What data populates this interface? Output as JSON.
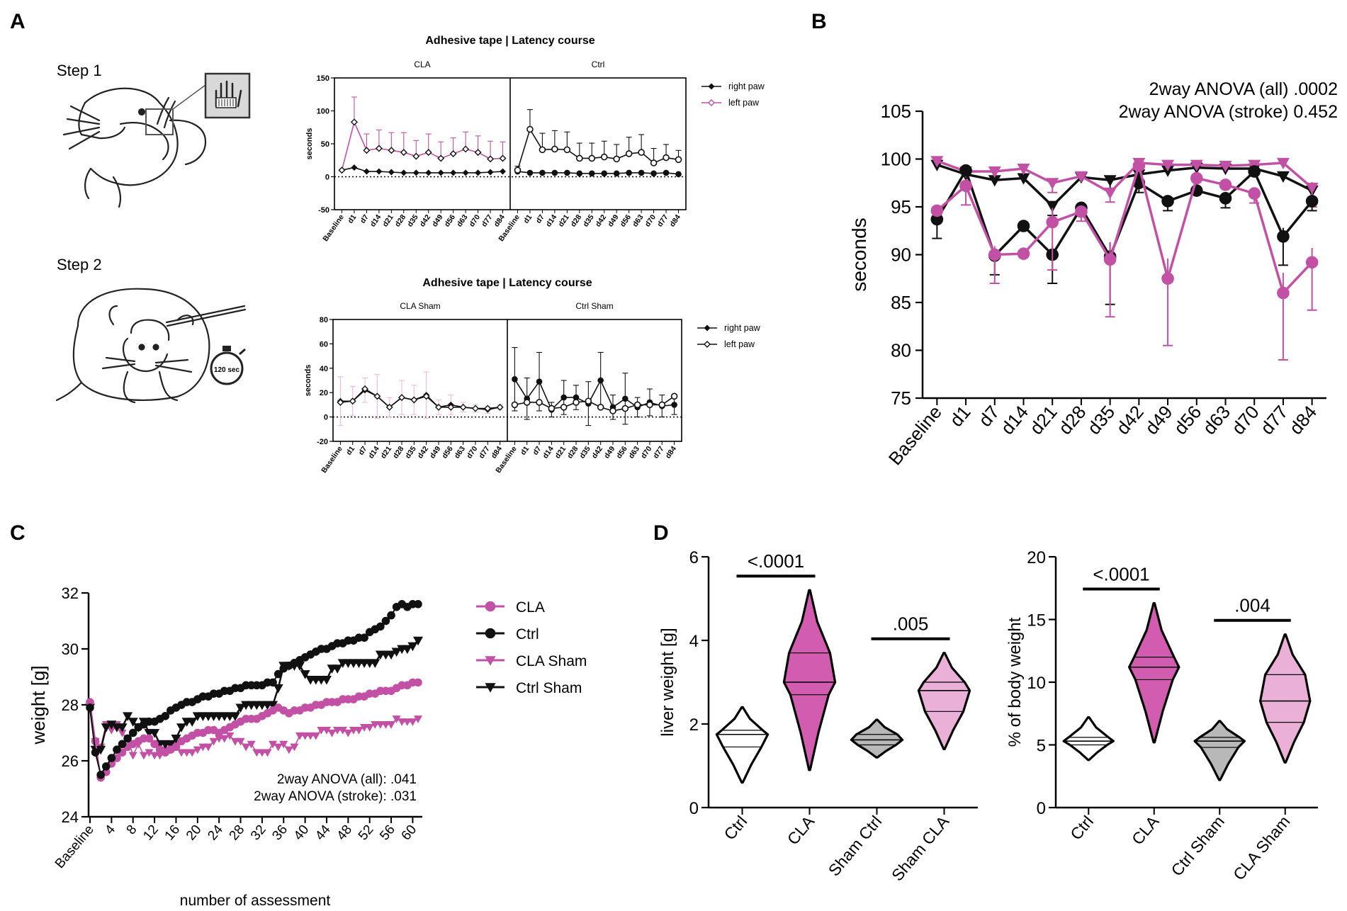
{
  "panel_labels": {
    "a": "A",
    "b": "B",
    "c": "C",
    "d": "D"
  },
  "steps": {
    "step1": "Step 1",
    "step2": "Step 2",
    "timer": "120 sec"
  },
  "colors": {
    "cla": "#c251a5",
    "black": "#111111",
    "gray": "#b8b8b8",
    "light_pink": "#f0b8dc",
    "pink_fill": "#d25cb0",
    "light_pink_fill": "#eab0d8"
  },
  "chart_data": [
    {
      "id": "tape_stroke",
      "type": "line",
      "title": "Adhesive tape |  Latency course",
      "ylabel": "seconds",
      "ylim": [
        -50,
        150
      ],
      "yticks": [
        150,
        100,
        50,
        0,
        -50
      ],
      "categories": [
        "Baseline",
        "d1",
        "d7",
        "d14",
        "d21",
        "d28",
        "d35",
        "d42",
        "d49",
        "d56",
        "d63",
        "d70",
        "d77",
        "d84"
      ],
      "legend": [
        "right paw",
        "left paw"
      ],
      "groups": [
        {
          "name": "CLA",
          "series": [
            {
              "name": "right paw",
              "values": [
                10,
                14,
                8,
                8,
                7,
                6,
                6,
                6,
                6,
                6,
                6,
                6,
                7,
                8
              ],
              "errors": [
                0,
                0,
                0,
                0,
                0,
                0,
                0,
                0,
                0,
                0,
                0,
                0,
                0,
                0
              ]
            },
            {
              "name": "left paw",
              "values": [
                10,
                83,
                40,
                43,
                40,
                37,
                31,
                37,
                28,
                35,
                42,
                37,
                27,
                28
              ],
              "errors": [
                0,
                38,
                25,
                28,
                27,
                30,
                24,
                28,
                25,
                24,
                26,
                25,
                27,
                25
              ]
            }
          ]
        },
        {
          "name": "Ctrl",
          "series": [
            {
              "name": "right paw",
              "values": [
                8,
                6,
                6,
                6,
                6,
                5,
                5,
                5,
                5,
                6,
                6,
                5,
                6,
                4
              ],
              "errors": [
                0,
                0,
                0,
                0,
                0,
                0,
                0,
                0,
                0,
                0,
                0,
                0,
                0,
                0
              ]
            },
            {
              "name": "left paw",
              "values": [
                10,
                72,
                41,
                42,
                41,
                28,
                28,
                30,
                27,
                35,
                37,
                21,
                29,
                26
              ],
              "errors": [
                6,
                30,
                25,
                28,
                27,
                23,
                23,
                24,
                22,
                25,
                27,
                22,
                20,
                14
              ]
            }
          ]
        }
      ]
    },
    {
      "id": "tape_sham",
      "type": "line",
      "title": "Adhesive tape |  Latency course",
      "ylabel": "seconds",
      "ylim": [
        -20,
        80
      ],
      "yticks": [
        80,
        60,
        40,
        20,
        0,
        -20
      ],
      "categories": [
        "Baseline",
        "d1",
        "d7",
        "d14",
        "d21",
        "d28",
        "d35",
        "d42",
        "d49",
        "d56",
        "d63",
        "d70",
        "d77",
        "d84"
      ],
      "legend": [
        "right paw",
        "left paw"
      ],
      "groups": [
        {
          "name": "CLA Sham",
          "series": [
            {
              "name": "right paw",
              "values": [
                13,
                13,
                22,
                17,
                8,
                16,
                14,
                18,
                8,
                10,
                8,
                7,
                6,
                8
              ],
              "errors": [
                20,
                12,
                10,
                18,
                8,
                14,
                12,
                19,
                6,
                8,
                4,
                3,
                3,
                2
              ]
            },
            {
              "name": "left paw",
              "values": [
                12,
                13,
                23,
                17,
                8,
                16,
                14,
                17,
                8,
                8,
                8,
                7,
                7,
                8
              ],
              "errors": [
                0,
                0,
                0,
                0,
                0,
                0,
                0,
                0,
                0,
                0,
                0,
                0,
                0,
                0
              ]
            }
          ]
        },
        {
          "name": "Ctrl  Sham",
          "series": [
            {
              "name": "right paw",
              "values": [
                31,
                15,
                29,
                6,
                16,
                16,
                11,
                30,
                8,
                15,
                8,
                12,
                9,
                10
              ],
              "errors": [
                26,
                17,
                24,
                6,
                14,
                10,
                18,
                23,
                10,
                21,
                8,
                11,
                9,
                8
              ]
            },
            {
              "name": "left paw",
              "values": [
                10,
                12,
                12,
                7,
                8,
                12,
                13,
                8,
                5,
                7,
                10,
                10,
                10,
                17
              ],
              "errors": [
                0,
                0,
                0,
                0,
                0,
                0,
                0,
                0,
                0,
                0,
                0,
                0,
                0,
                0
              ]
            }
          ]
        }
      ]
    },
    {
      "id": "panel_b",
      "type": "line",
      "ylabel": "seconds",
      "ylim": [
        75,
        105
      ],
      "yticks": [
        75,
        80,
        85,
        90,
        95,
        100,
        105
      ],
      "categories": [
        "Baseline",
        "d1",
        "d7",
        "d14",
        "d21",
        "d28",
        "d35",
        "d42",
        "d49",
        "d56",
        "d63",
        "d70",
        "d77",
        "d84"
      ],
      "annotations": [
        "2way ANOVA (all) .0002",
        "2way  ANOVA (stroke) 0.452"
      ],
      "series": [
        {
          "name": "CLA (circle, pink)",
          "values": [
            94.6,
            97.2,
            90.0,
            90.1,
            93.4,
            94.5,
            89.5,
            99.3,
            87.5,
            98.0,
            97.3,
            96.4,
            86.0,
            89.2
          ],
          "errors": [
            0,
            2,
            3,
            0,
            5,
            1,
            6,
            0,
            7,
            0,
            0,
            1,
            7,
            5
          ]
        },
        {
          "name": "Ctrl (circle, black)",
          "values": [
            93.7,
            98.8,
            89.9,
            93.0,
            90.0,
            94.9,
            89.8,
            97.5,
            95.6,
            96.7,
            95.9,
            98.7,
            91.9,
            95.6
          ],
          "errors": [
            2,
            0,
            2,
            0,
            3,
            0,
            5,
            1,
            1,
            0,
            1,
            0,
            3,
            1
          ]
        },
        {
          "name": "CLA Sham (triangle, pink)",
          "values": [
            99.8,
            98.7,
            98.7,
            99.0,
            97.5,
            98.2,
            96.5,
            99.6,
            99.4,
            99.4,
            99.3,
            99.4,
            99.6,
            97.0
          ],
          "errors": [
            0,
            0,
            0,
            0,
            1,
            0,
            1,
            0,
            0,
            0,
            0,
            0,
            0,
            2
          ]
        },
        {
          "name": "Ctrl Sham (triangle, black)",
          "values": [
            99.4,
            98.4,
            97.8,
            98.0,
            95.1,
            98.1,
            97.8,
            98.4,
            98.8,
            99.1,
            99.0,
            99.0,
            98.2,
            96.7
          ],
          "errors": [
            0,
            0,
            0,
            0,
            1,
            0,
            1,
            0,
            0,
            0,
            0,
            0,
            0,
            1
          ]
        }
      ]
    },
    {
      "id": "panel_c",
      "type": "line",
      "xlabel": "number of assessment",
      "ylabel": "weight [g]",
      "ylim": [
        24,
        32
      ],
      "yticks": [
        24,
        26,
        28,
        30,
        32
      ],
      "xticks": [
        "Baseline",
        "4",
        "8",
        "12",
        "16",
        "20",
        "24",
        "28",
        "32",
        "36",
        "40",
        "44",
        "48",
        "52",
        "56",
        "60"
      ],
      "legend": [
        "CLA",
        "Ctrl",
        "CLA Sham",
        "Ctrl Sham"
      ],
      "annotations": [
        "2way ANOVA (all): .041",
        "2way ANOVA (stroke): .031"
      ],
      "x": [
        0,
        1,
        2,
        3,
        4,
        5,
        6,
        7,
        8,
        9,
        10,
        11,
        12,
        13,
        14,
        15,
        16,
        17,
        18,
        19,
        20,
        21,
        22,
        23,
        24,
        25,
        26,
        27,
        28,
        29,
        30,
        31,
        32,
        33,
        34,
        35,
        36,
        37,
        38,
        39,
        40,
        41,
        42,
        43,
        44,
        45,
        46,
        47,
        48,
        49,
        50,
        51,
        52,
        53,
        54,
        55,
        56,
        57,
        58,
        59,
        60,
        61
      ],
      "series": [
        {
          "name": "CLA",
          "values": [
            28.1,
            26.7,
            25.4,
            25.6,
            25.9,
            26.1,
            26.3,
            26.5,
            26.6,
            26.7,
            26.8,
            26.8,
            26.6,
            26.4,
            26.3,
            26.4,
            26.5,
            26.7,
            26.8,
            26.9,
            27.0,
            27.0,
            27.1,
            27.1,
            27.0,
            27.1,
            27.2,
            27.3,
            27.4,
            27.5,
            27.5,
            27.5,
            27.6,
            27.7,
            27.8,
            27.9,
            27.8,
            27.7,
            27.8,
            27.8,
            27.9,
            27.9,
            28.0,
            28.0,
            28.1,
            28.1,
            28.1,
            28.2,
            28.2,
            28.2,
            28.3,
            28.3,
            28.4,
            28.4,
            28.5,
            28.5,
            28.5,
            28.6,
            28.7,
            28.7,
            28.8,
            28.8
          ]
        },
        {
          "name": "Ctrl",
          "values": [
            27.9,
            26.3,
            25.5,
            25.8,
            26.1,
            26.4,
            26.6,
            26.8,
            27.0,
            27.2,
            27.3,
            27.4,
            27.4,
            27.5,
            27.6,
            27.8,
            27.9,
            28.0,
            28.1,
            28.1,
            28.2,
            28.3,
            28.3,
            28.4,
            28.4,
            28.5,
            28.5,
            28.6,
            28.6,
            28.7,
            28.7,
            28.7,
            28.7,
            28.8,
            28.8,
            29.1,
            29.3,
            29.4,
            29.5,
            29.6,
            29.7,
            29.8,
            29.9,
            30.0,
            30.0,
            30.1,
            30.2,
            30.2,
            30.3,
            30.3,
            30.4,
            30.4,
            30.6,
            30.7,
            30.8,
            31.0,
            31.2,
            31.5,
            31.6,
            31.5,
            31.6,
            31.6
          ]
        },
        {
          "name": "CLA Sham",
          "values": [
            28.0,
            26.7,
            26.5,
            27.3,
            27.1,
            27.3,
            27.0,
            26.8,
            26.2,
            26.6,
            26.2,
            26.3,
            26.2,
            26.2,
            26.4,
            26.5,
            26.6,
            26.3,
            26.3,
            26.3,
            26.4,
            26.5,
            26.5,
            26.7,
            26.8,
            26.8,
            26.9,
            26.7,
            26.7,
            26.5,
            26.6,
            26.3,
            26.3,
            26.3,
            26.6,
            26.5,
            26.6,
            26.4,
            26.5,
            26.9,
            26.9,
            26.9,
            26.9,
            27.1,
            27.1,
            27.0,
            27.1,
            27.1,
            27.0,
            27.1,
            27.1,
            27.2,
            27.2,
            27.3,
            27.3,
            27.3,
            27.3,
            27.5,
            27.4,
            27.4,
            27.4,
            27.5
          ]
        },
        {
          "name": "Ctrl Sham",
          "values": [
            27.9,
            26.4,
            26.4,
            27.2,
            27.3,
            27.2,
            27.2,
            27.6,
            27.4,
            27.2,
            27.4,
            27.0,
            27.0,
            26.6,
            26.6,
            26.6,
            26.8,
            27.2,
            27.4,
            27.4,
            27.6,
            27.6,
            27.6,
            27.6,
            27.6,
            27.6,
            27.6,
            27.6,
            27.9,
            28.0,
            28.0,
            28.0,
            28.0,
            28.0,
            28.0,
            28.6,
            29.4,
            29.4,
            29.4,
            29.4,
            29.1,
            28.9,
            28.9,
            28.9,
            28.9,
            29.3,
            29.3,
            29.5,
            29.5,
            29.5,
            29.5,
            29.5,
            29.5,
            29.5,
            29.8,
            29.8,
            29.8,
            29.9,
            30.0,
            30.0,
            30.1,
            30.3
          ]
        }
      ]
    },
    {
      "id": "panel_d_liver",
      "type": "violin",
      "ylabel": "liver weight [g]",
      "ylim": [
        0,
        6
      ],
      "yticks": [
        0,
        2,
        4,
        6
      ],
      "categories": [
        "Ctrl",
        "CLA",
        "Sham Ctrl",
        "Sham CLA"
      ],
      "medians": [
        1.75,
        3.0,
        1.62,
        2.8
      ],
      "quartiles": [
        [
          1.45,
          1.85
        ],
        [
          2.7,
          3.7
        ],
        [
          1.5,
          1.75
        ],
        [
          2.3,
          3.0
        ]
      ],
      "ranges": [
        [
          0.6,
          2.4
        ],
        [
          0.9,
          5.2
        ],
        [
          1.2,
          2.1
        ],
        [
          1.4,
          3.7
        ]
      ],
      "significance": [
        {
          "pair": [
            "Ctrl",
            "CLA"
          ],
          "label": "<.0001"
        },
        {
          "pair": [
            "Sham Ctrl",
            "Sham CLA"
          ],
          "label": ".005"
        }
      ]
    },
    {
      "id": "panel_d_body",
      "type": "violin",
      "ylabel": "% of body weight",
      "ylim": [
        0,
        20
      ],
      "yticks": [
        0,
        5,
        10,
        15,
        20
      ],
      "categories": [
        "Ctrl",
        "CLA",
        "Ctrl Sham",
        "CLA Sham"
      ],
      "medians": [
        5.3,
        11.2,
        5.3,
        8.5
      ],
      "quartiles": [
        [
          5.0,
          5.6
        ],
        [
          10.2,
          12.0
        ],
        [
          4.8,
          5.6
        ],
        [
          6.8,
          10.6
        ]
      ],
      "ranges": [
        [
          3.8,
          7.2
        ],
        [
          5.2,
          16.3
        ],
        [
          2.2,
          6.9
        ],
        [
          3.6,
          13.8
        ]
      ],
      "significance": [
        {
          "pair": [
            "Ctrl",
            "CLA"
          ],
          "label": "<.0001"
        },
        {
          "pair": [
            "Ctrl Sham",
            "CLA Sham"
          ],
          "label": ".004"
        }
      ]
    }
  ]
}
